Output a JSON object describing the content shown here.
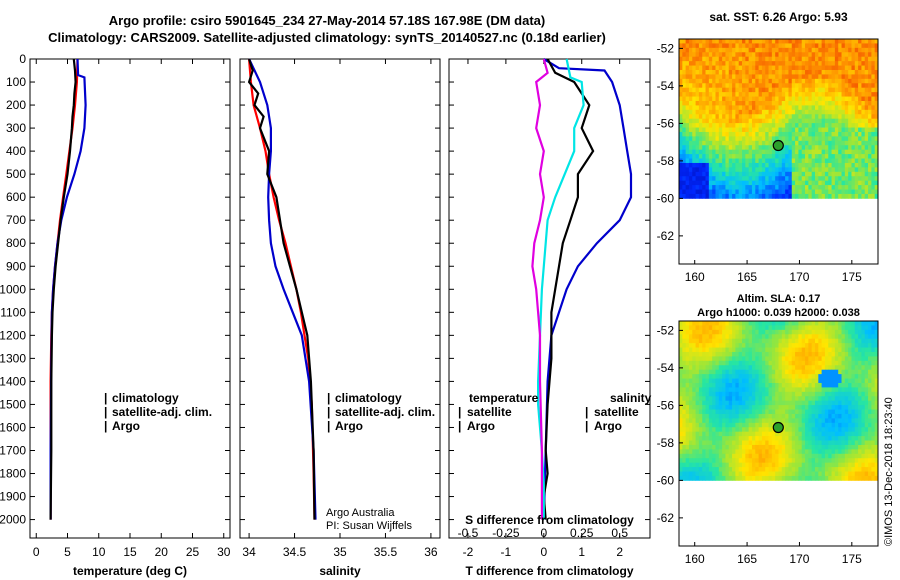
{
  "header": {
    "title_line1": "Argo profile: csiro 5901645_234 27-May-2014 57.18S 167.98E (DM data)",
    "title_line2": "Climatology: CARS2009. Satellite-adjusted climatology: synTS_20140527.nc (0.18d earlier)"
  },
  "credit": "©IMOS 13-Dec-2018 18:23:40",
  "colors": {
    "climatology": "#ff0000",
    "satellite": "#0000cc",
    "argo": "#000000",
    "salinity_sat": "#00e5e5",
    "salinity_argo": "#e000e0"
  },
  "chart_data": [
    {
      "type": "line",
      "xlabel": "temperature (deg C)",
      "ylabel": "",
      "xlim": [
        -1,
        31
      ],
      "ylim": [
        2080,
        0
      ],
      "xticks": [
        0,
        5,
        10,
        15,
        20,
        25,
        30
      ],
      "yticks": [
        0,
        100,
        200,
        300,
        400,
        500,
        600,
        700,
        800,
        900,
        1000,
        1100,
        1200,
        1300,
        1400,
        1500,
        1600,
        1700,
        1800,
        1900,
        2000
      ],
      "legend": [
        {
          "mark": "|",
          "label": "climatology",
          "color": "#ff0000"
        },
        {
          "mark": "|",
          "label": "satellite-adj. clim.",
          "color": "#0000cc"
        },
        {
          "mark": "|",
          "label": "Argo",
          "color": "#000000"
        }
      ],
      "series": [
        {
          "name": "climatology",
          "color": "#ff0000",
          "x": [
            6.6,
            6.5,
            6.2,
            5.8,
            5.3,
            4.8,
            4.3,
            3.8,
            3.4,
            3.0,
            2.7,
            2.5,
            2.4,
            2.3,
            2.3,
            2.3
          ],
          "y": [
            0,
            100,
            200,
            300,
            400,
            500,
            600,
            700,
            800,
            900,
            1000,
            1100,
            1200,
            1400,
            1700,
            2000
          ]
        },
        {
          "name": "satellite-adj. clim.",
          "color": "#0000cc",
          "x": [
            6.6,
            6.7,
            7.7,
            7.9,
            7.7,
            7.1,
            6.1,
            4.9,
            4.0,
            3.4,
            3.0,
            2.7,
            2.5,
            2.4,
            2.3,
            2.3
          ],
          "y": [
            0,
            70,
            80,
            200,
            300,
            400,
            500,
            600,
            700,
            800,
            900,
            1000,
            1100,
            1300,
            1700,
            2000
          ]
        },
        {
          "name": "Argo",
          "color": "#000000",
          "x": [
            6.0,
            6.2,
            6.3,
            6.1,
            6.0,
            5.8,
            5.7,
            5.4,
            5.0,
            4.4,
            3.9,
            3.5,
            3.1,
            2.8,
            2.6,
            2.5,
            2.4,
            2.4,
            2.3
          ],
          "y": [
            0,
            50,
            100,
            150,
            200,
            250,
            300,
            400,
            500,
            600,
            700,
            800,
            900,
            1000,
            1100,
            1200,
            1400,
            1700,
            2000
          ]
        }
      ]
    },
    {
      "type": "line",
      "xlabel": "salinity",
      "xlim": [
        33.9,
        36.1
      ],
      "ylim": [
        2080,
        0
      ],
      "xticks": [
        34,
        34.5,
        35,
        35.5,
        36
      ],
      "legend": [
        {
          "mark": "|",
          "label": "climatology",
          "color": "#ff0000"
        },
        {
          "mark": "|",
          "label": "satellite-adj. clim.",
          "color": "#0000cc"
        },
        {
          "mark": "|",
          "label": "Argo",
          "color": "#000000"
        }
      ],
      "annotations": [
        "Argo Australia",
        "PI: Susan Wijffels"
      ],
      "series": [
        {
          "name": "climatology",
          "color": "#ff0000",
          "x": [
            34.0,
            34.02,
            34.05,
            34.12,
            34.18,
            34.22,
            34.27,
            34.33,
            34.4,
            34.46,
            34.52,
            34.57,
            34.61,
            34.65,
            34.69,
            34.71,
            34.72
          ],
          "y": [
            0,
            100,
            200,
            300,
            400,
            500,
            600,
            700,
            800,
            900,
            1000,
            1100,
            1200,
            1300,
            1500,
            1800,
            2000
          ]
        },
        {
          "name": "satellite-adj. clim.",
          "color": "#0000cc",
          "x": [
            34.0,
            34.12,
            34.2,
            34.24,
            34.24,
            34.22,
            34.21,
            34.22,
            34.24,
            34.29,
            34.38,
            34.48,
            34.58,
            34.66,
            34.71,
            34.73
          ],
          "y": [
            0,
            100,
            200,
            300,
            400,
            500,
            600,
            700,
            800,
            900,
            1000,
            1100,
            1200,
            1400,
            1700,
            2000
          ]
        },
        {
          "name": "Argo",
          "color": "#000000",
          "x": [
            34.0,
            34.04,
            34.0,
            34.1,
            34.06,
            34.16,
            34.12,
            34.22,
            34.2,
            34.3,
            34.34,
            34.38,
            34.45,
            34.52,
            34.58,
            34.64,
            34.68,
            34.71,
            34.72
          ],
          "y": [
            0,
            50,
            100,
            150,
            200,
            250,
            300,
            400,
            500,
            600,
            700,
            800,
            900,
            1000,
            1100,
            1200,
            1400,
            1700,
            2000
          ]
        }
      ]
    },
    {
      "type": "line",
      "xlabel": "T difference from climatology",
      "top_xlabel": "S difference from climatology",
      "xlim": [
        -2.5,
        2.8
      ],
      "ylim": [
        2080,
        0
      ],
      "xticks": [
        -2,
        -1,
        0,
        1,
        2
      ],
      "top_xticks": [
        "-0.5",
        "-0.25",
        "0",
        "0.25",
        "0.5"
      ],
      "legend_left_title": "temperature",
      "legend_right_title": "salinity",
      "legend": [
        {
          "mark": "|",
          "label": "satellite",
          "color": "#0000cc",
          "side": "left"
        },
        {
          "mark": "|",
          "label": "Argo",
          "color": "#000000",
          "side": "left"
        },
        {
          "mark": "|",
          "label": "satellite",
          "color": "#00e5e5",
          "side": "right"
        },
        {
          "mark": "|",
          "label": "Argo",
          "color": "#e000e0",
          "side": "right"
        }
      ],
      "series": [
        {
          "name": "T satellite",
          "color": "#0000cc",
          "x": [
            0,
            0.4,
            1.6,
            1.8,
            2.0,
            2.1,
            2.2,
            2.3,
            2.3,
            2.0,
            1.4,
            0.9,
            0.6,
            0.4,
            0.2,
            0.1,
            0.05,
            0
          ],
          "y": [
            0,
            40,
            50,
            100,
            200,
            300,
            400,
            500,
            600,
            700,
            800,
            900,
            1000,
            1100,
            1200,
            1400,
            1700,
            2000
          ]
        },
        {
          "name": "T Argo",
          "color": "#000000",
          "x": [
            0.1,
            0.3,
            0.8,
            1.2,
            1.0,
            1.3,
            0.9,
            0.9,
            0.7,
            0.5,
            0.4,
            0.3,
            0.2,
            0.2,
            0.1,
            0.05,
            0.1,
            0.0,
            0.05
          ],
          "y": [
            0,
            60,
            100,
            200,
            300,
            400,
            500,
            600,
            700,
            800,
            900,
            1000,
            1100,
            1300,
            1500,
            1700,
            1800,
            1900,
            2000
          ]
        },
        {
          "name": "S satellite",
          "color": "#00e5e5",
          "x": [
            0.6,
            0.7,
            1.0,
            1.05,
            0.8,
            0.8,
            0.3,
            0.1,
            0.0,
            -0.05,
            -0.1,
            -0.15,
            -0.15,
            -0.1,
            -0.05,
            0.0,
            0.0
          ],
          "y": [
            0,
            80,
            100,
            200,
            300,
            400,
            600,
            700,
            900,
            1000,
            1200,
            1400,
            1500,
            1600,
            1700,
            1850,
            2000
          ]
        },
        {
          "name": "S Argo",
          "color": "#e000e0",
          "x": [
            0.0,
            0.1,
            -0.2,
            -0.1,
            -0.2,
            0.0,
            -0.1,
            0.0,
            -0.1,
            -0.25,
            -0.3,
            -0.2,
            -0.15,
            -0.1,
            -0.1,
            -0.05,
            -0.05
          ],
          "y": [
            0,
            60,
            100,
            200,
            300,
            400,
            500,
            600,
            700,
            800,
            900,
            1000,
            1100,
            1200,
            1400,
            1700,
            2000
          ]
        }
      ]
    },
    {
      "type": "heatmap",
      "title": "sat. SST: 6.26 Argo: 5.93",
      "xlim": [
        158.5,
        177.5
      ],
      "ylim": [
        -63.5,
        -51.5
      ],
      "xticks": [
        160,
        165,
        170,
        175
      ],
      "yticks": [
        -52,
        -54,
        -56,
        -58,
        -60,
        -62
      ],
      "marker": {
        "lon": 167.98,
        "lat": -57.18
      }
    },
    {
      "type": "heatmap",
      "title_line1": "Altim. SLA: 0.17",
      "title_line2": "Argo h1000: 0.039 h2000: 0.038",
      "xlim": [
        158.5,
        177.5
      ],
      "ylim": [
        -63.5,
        -51.5
      ],
      "xticks": [
        160,
        165,
        170,
        175
      ],
      "yticks": [
        -52,
        -54,
        -56,
        -58,
        -60,
        -62
      ],
      "marker": {
        "lon": 167.98,
        "lat": -57.18
      }
    }
  ]
}
